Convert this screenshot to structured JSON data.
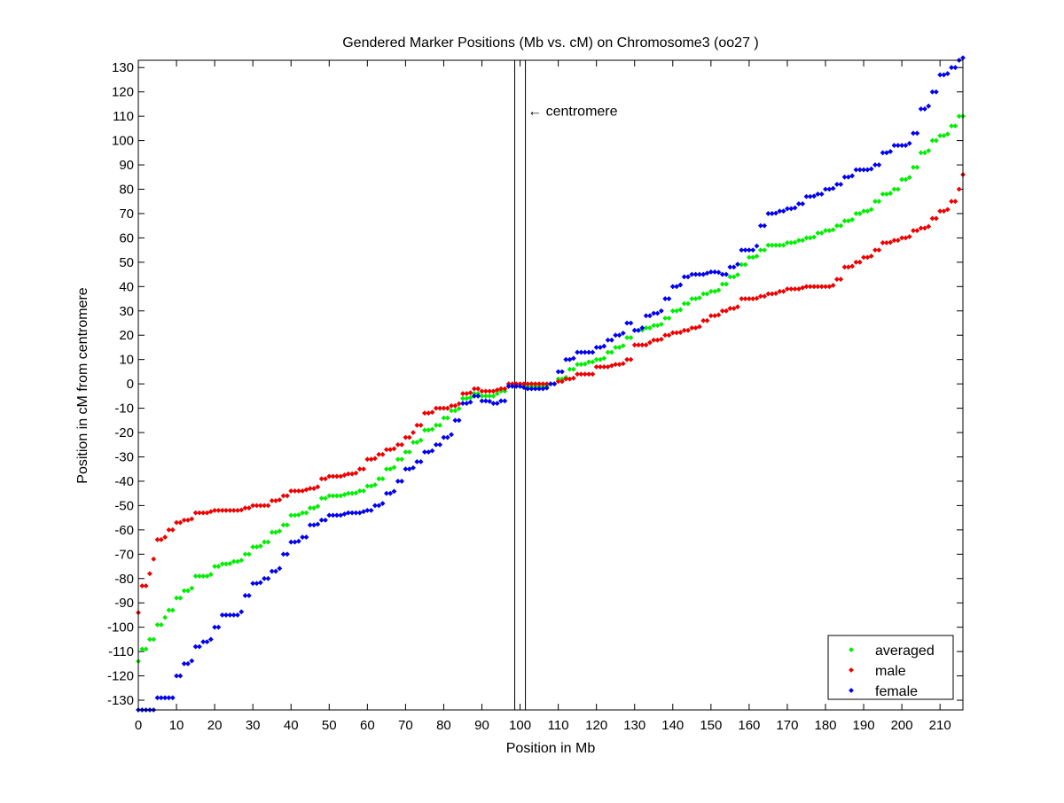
{
  "chart_data": {
    "type": "scatter",
    "title": "Gendered Marker Positions (Mb vs. cM) on Chromosome3 (oo27 )",
    "xlabel": "Position in Mb",
    "ylabel": "Position in cM from centromere",
    "xlim": [
      0,
      216
    ],
    "ylim": [
      -134,
      133
    ],
    "xticks": [
      0,
      10,
      20,
      30,
      40,
      50,
      60,
      70,
      80,
      90,
      100,
      110,
      120,
      130,
      140,
      150,
      160,
      170,
      180,
      190,
      200,
      210
    ],
    "yticks": [
      -130,
      -120,
      -110,
      -100,
      -90,
      -80,
      -70,
      -60,
      -50,
      -40,
      -30,
      -20,
      -10,
      0,
      10,
      20,
      30,
      40,
      50,
      60,
      70,
      80,
      90,
      100,
      110,
      120,
      130
    ],
    "grid": false,
    "legend_position": "bottom-right",
    "centromere_lines": [
      98.6,
      101.4
    ],
    "annotation": {
      "text": "← centromere",
      "x": 102,
      "y": 112
    },
    "series": [
      {
        "name": "averaged",
        "color": "#00ee00",
        "x": [
          0,
          1,
          3,
          5,
          7,
          8,
          10,
          12,
          15,
          17,
          20,
          22,
          25,
          28,
          30,
          33,
          35,
          38,
          40,
          43,
          45,
          48,
          50,
          55,
          58,
          60,
          63,
          65,
          68,
          70,
          72,
          75,
          78,
          80,
          82,
          85,
          88,
          90,
          95,
          97,
          102,
          105,
          108,
          110,
          113,
          115,
          118,
          120,
          123,
          125,
          128,
          130,
          133,
          135,
          138,
          140,
          143,
          145,
          148,
          150,
          153,
          155,
          158,
          160,
          163,
          165,
          168,
          170,
          173,
          175,
          178,
          180,
          183,
          185,
          188,
          190,
          193,
          195,
          198,
          200,
          203,
          205,
          208,
          210,
          213,
          215,
          216
        ],
        "y": [
          -114,
          -109,
          -105,
          -99,
          -96,
          -93,
          -88,
          -85,
          -79,
          -79,
          -75,
          -74,
          -73,
          -70,
          -67,
          -65,
          -61,
          -58,
          -54,
          -53,
          -51,
          -47,
          -46,
          -45,
          -44,
          -42,
          -39,
          -35,
          -31,
          -28,
          -24,
          -19,
          -17,
          -14,
          -11,
          -6,
          -4,
          -5,
          -3,
          -1,
          -1,
          -1,
          0,
          2,
          6,
          8,
          9,
          10,
          13,
          15,
          19,
          22,
          23,
          24,
          27,
          30,
          33,
          35,
          37,
          38,
          41,
          44,
          49,
          52,
          55,
          57,
          57,
          58,
          59,
          60,
          62,
          63,
          65,
          67,
          70,
          71,
          75,
          78,
          80,
          84,
          89,
          95,
          100,
          102,
          106,
          110,
          110
        ]
      },
      {
        "name": "male",
        "color": "#ee0000",
        "x": [
          0,
          1,
          3,
          4,
          5,
          7,
          8,
          10,
          12,
          15,
          20,
          25,
          28,
          30,
          33,
          35,
          38,
          40,
          45,
          48,
          50,
          55,
          58,
          60,
          63,
          65,
          68,
          70,
          72,
          73,
          75,
          78,
          80,
          82,
          85,
          88,
          90,
          95,
          97,
          102,
          105,
          108,
          110,
          112,
          115,
          118,
          120,
          125,
          128,
          130,
          135,
          138,
          140,
          143,
          145,
          148,
          150,
          153,
          155,
          158,
          160,
          163,
          165,
          168,
          170,
          175,
          180,
          183,
          185,
          188,
          190,
          193,
          195,
          198,
          200,
          203,
          205,
          208,
          210,
          213,
          215,
          216
        ],
        "y": [
          -94,
          -83,
          -78,
          -72,
          -64,
          -63,
          -60,
          -57,
          -56,
          -53,
          -52,
          -52,
          -51,
          -50,
          -50,
          -48,
          -46,
          -44,
          -43,
          -39,
          -38,
          -37,
          -35,
          -31,
          -29,
          -27,
          -25,
          -22,
          -20,
          -17,
          -12,
          -10,
          -10,
          -9,
          -4,
          -2,
          -3,
          -2,
          0,
          0,
          0,
          0,
          1,
          2,
          4,
          4,
          7,
          8,
          10,
          16,
          18,
          20,
          21,
          22,
          23,
          26,
          28,
          30,
          31,
          35,
          35,
          36,
          37,
          38,
          39,
          40,
          40,
          43,
          48,
          50,
          52,
          55,
          58,
          59,
          60,
          63,
          64,
          68,
          71,
          75,
          80,
          86
        ]
      },
      {
        "name": "female",
        "color": "#0000ee",
        "x": [
          0,
          3,
          5,
          8,
          10,
          12,
          15,
          17,
          20,
          22,
          25,
          28,
          30,
          33,
          35,
          38,
          40,
          43,
          45,
          48,
          50,
          55,
          60,
          62,
          65,
          68,
          70,
          73,
          75,
          78,
          80,
          83,
          85,
          88,
          90,
          93,
          95,
          97,
          102,
          105,
          108,
          110,
          112,
          115,
          118,
          120,
          123,
          125,
          128,
          130,
          133,
          135,
          138,
          140,
          143,
          145,
          150,
          153,
          155,
          158,
          160,
          163,
          165,
          168,
          170,
          173,
          175,
          178,
          180,
          183,
          185,
          188,
          190,
          193,
          195,
          198,
          200,
          203,
          205,
          208,
          210,
          213,
          215,
          216
        ],
        "y": [
          -134,
          -134,
          -129,
          -129,
          -120,
          -115,
          -108,
          -106,
          -100,
          -95,
          -95,
          -87,
          -82,
          -80,
          -77,
          -70,
          -65,
          -63,
          -58,
          -56,
          -54,
          -53,
          -52,
          -50,
          -45,
          -40,
          -35,
          -32,
          -28,
          -25,
          -22,
          -15,
          -8,
          -5,
          -7,
          -8,
          -7,
          -1,
          -2,
          -2,
          0,
          5,
          10,
          13,
          13,
          15,
          18,
          20,
          25,
          22,
          28,
          29,
          35,
          40,
          44,
          45,
          46,
          45,
          48,
          55,
          55,
          65,
          70,
          71,
          72,
          74,
          77,
          78,
          80,
          82,
          85,
          88,
          88,
          90,
          95,
          98,
          98,
          103,
          113,
          120,
          127,
          130,
          133,
          134
        ]
      }
    ]
  }
}
